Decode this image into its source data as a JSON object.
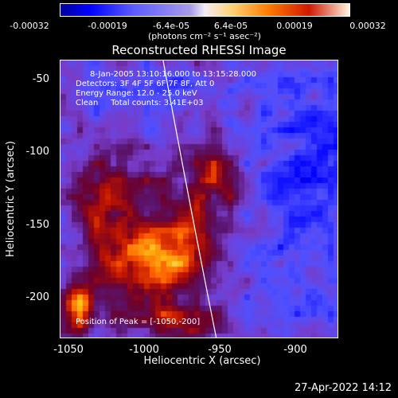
{
  "colorbar": {
    "ticks": [
      "-0.00032",
      "-0.00019",
      "-6.4e-05",
      "6.4e-05",
      "0.00019",
      "0.00032"
    ],
    "unit_label": "(photons cm⁻² s⁻¹ asec⁻²)"
  },
  "plot": {
    "title": "Reconstructed RHESSI Image",
    "annotations": {
      "time_range": "8-Jan-2005 13:10:16.000 to 13:15:28.000",
      "detectors": "Detectors: 3F 4F 5F 6F 7F 8F, Att 0",
      "energy": "Energy Range: 12.0 - 25.0 keV",
      "clean": "Clean     Total counts: 3.41E+03",
      "peak": "Position of Peak = [-1050,-200]"
    }
  },
  "chart_data": {
    "type": "heatmap",
    "title": "Reconstructed RHESSI Image",
    "xlabel": "Heliocentric X (arcsec)",
    "ylabel": "Heliocentric Y (arcsec)",
    "xlim": [
      -1060,
      -878
    ],
    "ylim": [
      -228,
      -40
    ],
    "x_ticks": [
      "-1050",
      "-1000",
      "-950",
      "-900"
    ],
    "y_ticks": [
      "-50",
      "-100",
      "-150",
      "-200"
    ],
    "colorbar_range": [
      -0.00032,
      0.00032
    ],
    "peak": [
      -1050,
      -200
    ],
    "limb": "white curve from top near x≈-970 to bottom near x≈-950"
  },
  "footer": {
    "timestamp": "27-Apr-2022 14:12"
  }
}
